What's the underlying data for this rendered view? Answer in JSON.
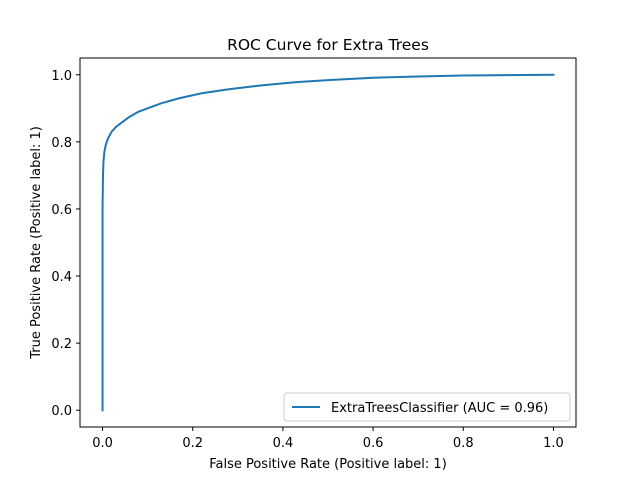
{
  "chart_data": {
    "type": "line",
    "title": "ROC Curve for Extra Trees",
    "xlabel": "False Positive Rate (Positive label: 1)",
    "ylabel": "True Positive Rate (Positive label: 1)",
    "xlim": [
      -0.05,
      1.05
    ],
    "ylim": [
      -0.05,
      1.05
    ],
    "xticks": [
      0.0,
      0.2,
      0.4,
      0.6,
      0.8,
      1.0
    ],
    "xtick_labels": [
      "0.0",
      "0.2",
      "0.4",
      "0.6",
      "0.8",
      "1.0"
    ],
    "yticks": [
      0.0,
      0.2,
      0.4,
      0.6,
      0.8,
      1.0
    ],
    "ytick_labels": [
      "0.0",
      "0.2",
      "0.4",
      "0.6",
      "0.8",
      "1.0"
    ],
    "grid": false,
    "legend_position": "lower-right",
    "series": [
      {
        "name": "ExtraTreesClassifier (AUC = 0.96)",
        "color": "#1f77b4",
        "x": [
          0.0,
          0.0,
          0.001,
          0.002,
          0.004,
          0.007,
          0.012,
          0.02,
          0.03,
          0.045,
          0.06,
          0.08,
          0.1,
          0.13,
          0.17,
          0.22,
          0.28,
          0.35,
          0.43,
          0.5,
          0.6,
          0.7,
          0.8,
          0.9,
          1.0
        ],
        "y": [
          0.0,
          0.6,
          0.7,
          0.74,
          0.77,
          0.79,
          0.81,
          0.83,
          0.845,
          0.86,
          0.875,
          0.89,
          0.9,
          0.915,
          0.93,
          0.945,
          0.957,
          0.968,
          0.978,
          0.984,
          0.991,
          0.995,
          0.998,
          0.999,
          1.0
        ]
      }
    ]
  }
}
